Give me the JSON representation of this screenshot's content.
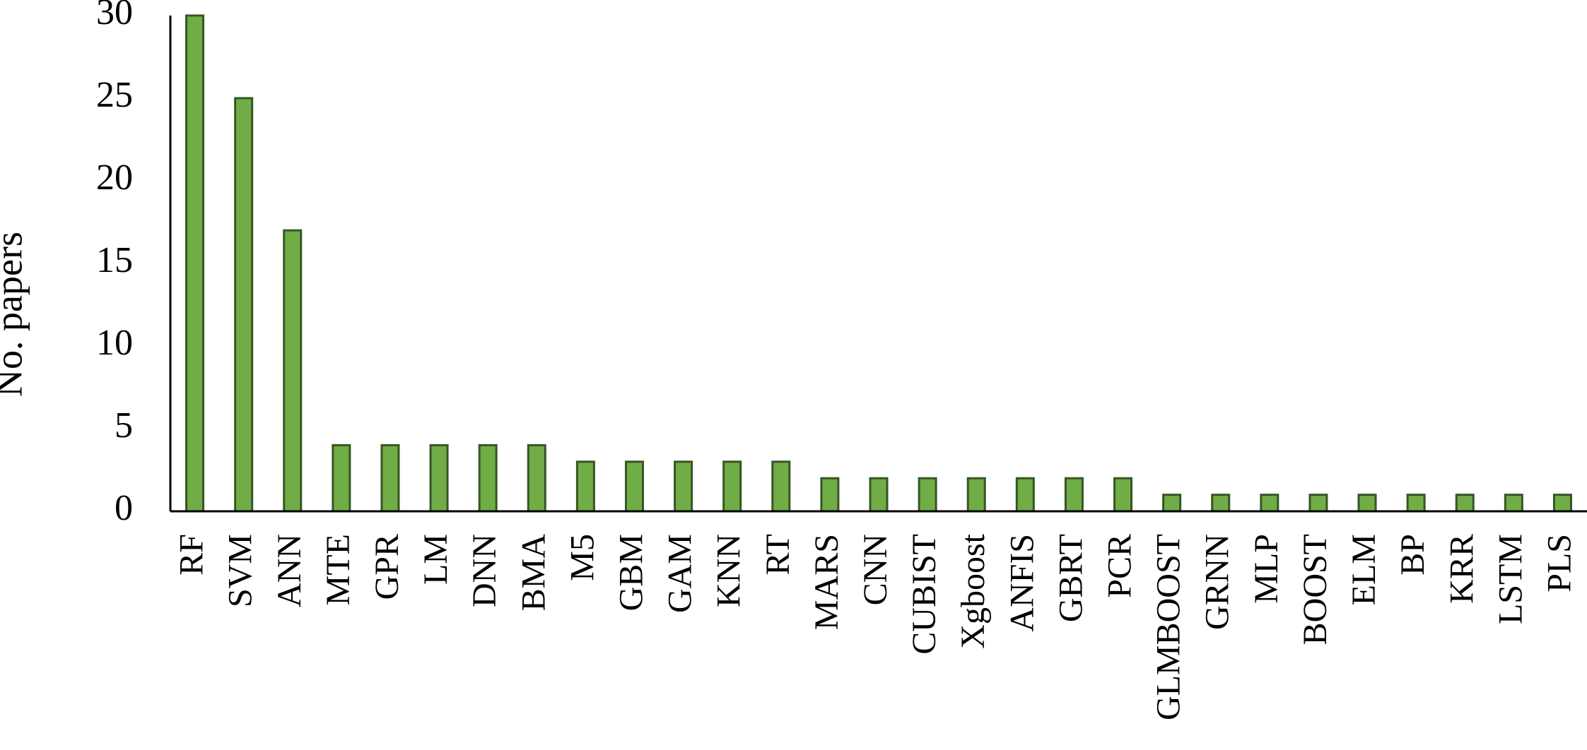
{
  "chart_data": {
    "type": "bar",
    "title": "",
    "xlabel": "",
    "ylabel": "No. papers",
    "ylim": [
      0,
      30
    ],
    "yticks": [
      0,
      5,
      10,
      15,
      20,
      25,
      30
    ],
    "grid": false,
    "bar_color": "#70ad47",
    "bar_edge_color": "#375623",
    "categories": [
      "RF",
      "SVM",
      "ANN",
      "MTE",
      "GPR",
      "LM",
      "DNN",
      "BMA",
      "M5",
      "GBM",
      "GAM",
      "KNN",
      "RT",
      "MARS",
      "CNN",
      "CUBIST",
      "Xgboost",
      "ANFIS",
      "GBRT",
      "PCR",
      "GLMBOOST",
      "GRNN",
      "MLP",
      "BOOST",
      "ELM",
      "BP",
      "KRR",
      "LSTM",
      "PLS"
    ],
    "values": [
      30,
      25,
      17,
      4,
      4,
      4,
      4,
      4,
      3,
      3,
      3,
      3,
      3,
      2,
      2,
      2,
      2,
      2,
      2,
      2,
      1,
      1,
      1,
      1,
      1,
      1,
      1,
      1,
      1
    ]
  }
}
